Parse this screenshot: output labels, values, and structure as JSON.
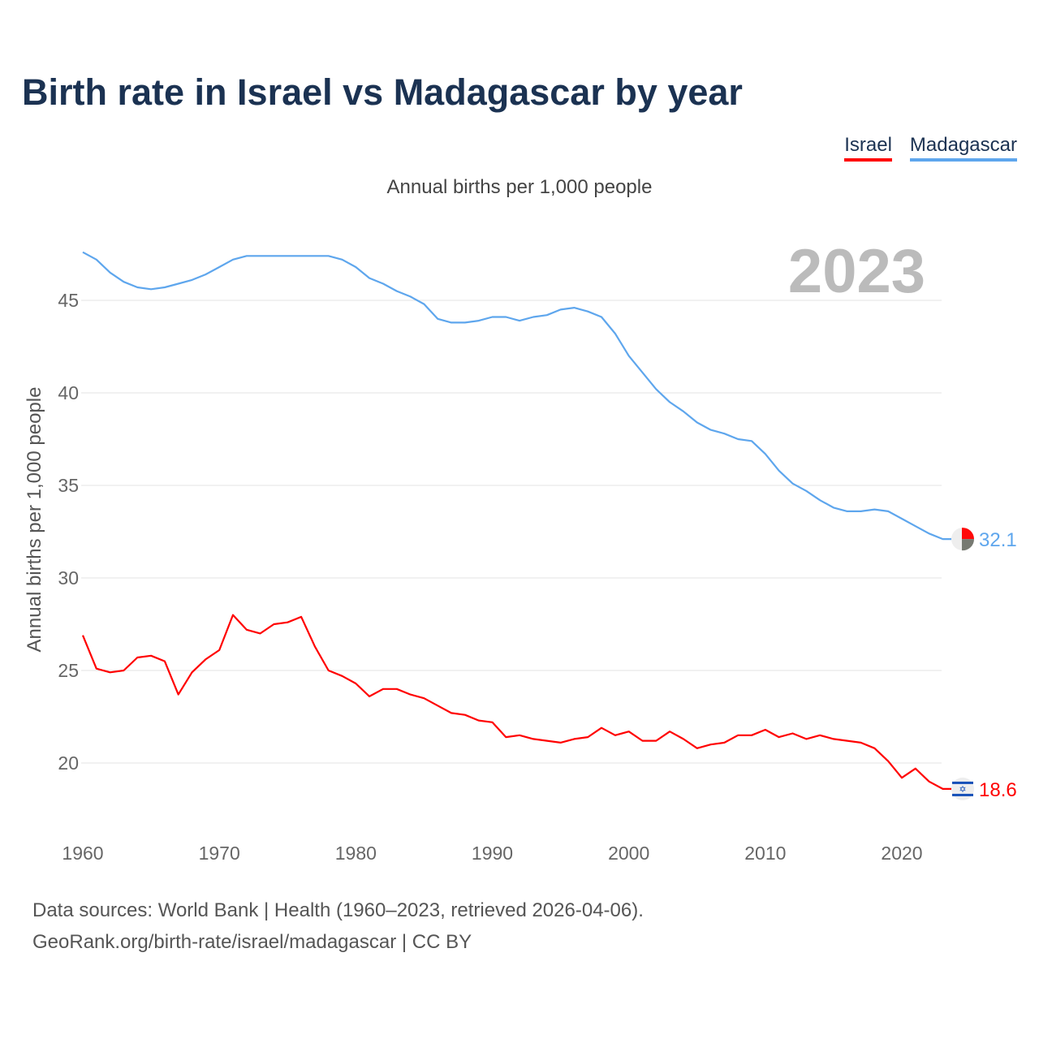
{
  "title": "Birth rate in Israel vs Madagascar by year",
  "footer": {
    "line1": "Data sources: World Bank | Health (1960–2023, retrieved 2026-04-06).",
    "line2": "GeoRank.org/birth-rate/israel/madagascar | CC BY"
  },
  "chart_data": {
    "type": "line",
    "title": "Birth rate in Israel vs Madagascar by year",
    "subtitle": "Annual births per 1,000 people",
    "ylabel": "Annual births per 1,000 people",
    "xlabel": "",
    "year_label": "2023",
    "xlim": [
      1960,
      2023
    ],
    "ylim": [
      16.5,
      48
    ],
    "xticks": [
      1960,
      1970,
      1980,
      1990,
      2000,
      2010,
      2020
    ],
    "yticks": [
      20,
      25,
      30,
      35,
      40,
      45
    ],
    "legend_position": "top-right",
    "grid": true,
    "x_start": 1960,
    "series": [
      {
        "name": "Israel",
        "color": "#ff0000",
        "end_label": "18.6",
        "flag": "israel-flag-icon",
        "values": [
          26.9,
          25.1,
          24.9,
          25.0,
          25.7,
          25.8,
          25.5,
          23.7,
          24.9,
          25.6,
          26.1,
          28.0,
          27.2,
          27.0,
          27.5,
          27.6,
          27.9,
          26.3,
          25.0,
          24.7,
          24.3,
          23.6,
          24.0,
          24.0,
          23.7,
          23.5,
          23.1,
          22.7,
          22.6,
          22.3,
          22.2,
          21.4,
          21.5,
          21.3,
          21.2,
          21.1,
          21.3,
          21.4,
          21.9,
          21.5,
          21.7,
          21.2,
          21.2,
          21.7,
          21.3,
          20.8,
          21.0,
          21.1,
          21.5,
          21.5,
          21.8,
          21.4,
          21.6,
          21.3,
          21.5,
          21.3,
          21.2,
          21.1,
          20.8,
          20.1,
          19.2,
          19.7,
          19.0,
          18.6
        ]
      },
      {
        "name": "Madagascar",
        "color": "#5ea6ed",
        "end_label": "32.1",
        "flag": "madagascar-flag-icon",
        "values": [
          47.6,
          47.2,
          46.5,
          46.0,
          45.7,
          45.6,
          45.7,
          45.9,
          46.1,
          46.4,
          46.8,
          47.2,
          47.4,
          47.4,
          47.4,
          47.4,
          47.4,
          47.4,
          47.4,
          47.2,
          46.8,
          46.2,
          45.9,
          45.5,
          45.2,
          44.8,
          44.0,
          43.8,
          43.8,
          43.9,
          44.1,
          44.1,
          43.9,
          44.1,
          44.2,
          44.5,
          44.6,
          44.4,
          44.1,
          43.2,
          42.0,
          41.1,
          40.2,
          39.5,
          39.0,
          38.4,
          38.0,
          37.8,
          37.5,
          37.4,
          36.7,
          35.8,
          35.1,
          34.7,
          34.2,
          33.8,
          33.6,
          33.6,
          33.7,
          33.6,
          33.2,
          32.8,
          32.4,
          32.1
        ]
      }
    ]
  }
}
